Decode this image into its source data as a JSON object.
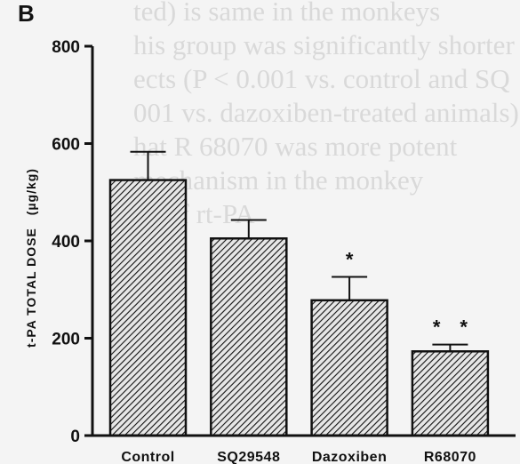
{
  "panel_label": "B",
  "background_text": [
    "ted) is same in the monkeys",
    "his group was significantly shorter as",
    "ects (P < 0.001 vs. control and SQ",
    "001 vs. dazoxiben-treated animals).",
    "hat R 68070 was more potent",
    "mechanism in the monkey",
    "ge of rt-PA",
    "",
    "",
    "",
    "",
    ""
  ],
  "chart_data": {
    "type": "bar",
    "title": "",
    "ylabel": "t-PA  TOTAL  DOSE",
    "ylabel_unit": "(µg/kg)",
    "xlabel": "",
    "categories": [
      "Control",
      "SQ29548",
      "Dazoxiben",
      "R68070"
    ],
    "values": [
      525,
      405,
      278,
      173
    ],
    "error_upper": [
      583,
      443,
      326,
      187
    ],
    "significance": [
      "",
      "",
      "*",
      "* *"
    ],
    "ylim": [
      0,
      800
    ],
    "yticks": [
      0,
      200,
      400,
      600,
      800
    ],
    "grid": false,
    "legend": "none",
    "bar_fill": "hatched",
    "colors": {
      "bar_stroke": "#111111",
      "hatch": "#111111",
      "bar_bg": "#e6e6e6"
    }
  }
}
